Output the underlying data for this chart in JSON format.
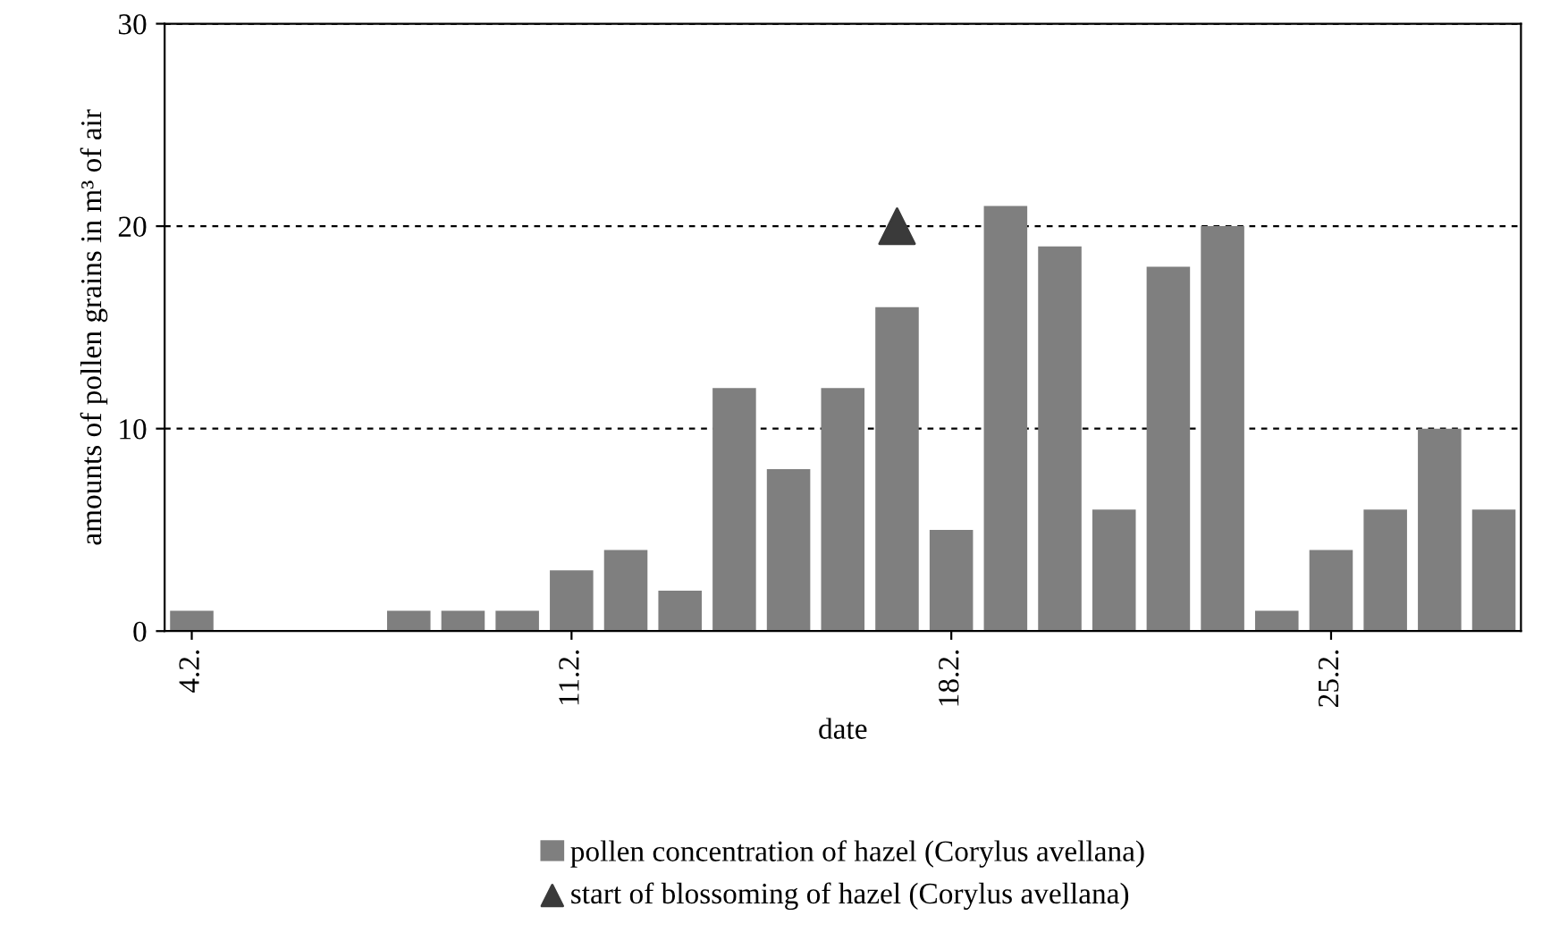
{
  "chart_data": {
    "type": "bar",
    "xlabel": "date",
    "ylabel": "amounts of pollen grains in m³ of air",
    "categories": [
      "4.2.",
      null,
      null,
      null,
      null,
      null,
      null,
      "11.2.",
      null,
      null,
      null,
      null,
      null,
      null,
      "18.2.",
      null,
      null,
      null,
      null,
      null,
      null,
      "25.2.",
      null,
      null,
      null
    ],
    "series": [
      {
        "name": "pollen concentration of hazel (Corylus avellana)",
        "color": "#7f7f7f",
        "values": [
          1,
          0,
          0,
          0,
          1,
          1,
          1,
          3,
          4,
          2,
          12,
          8,
          12,
          16,
          5,
          21,
          19,
          6,
          18,
          20,
          1,
          4,
          6,
          10,
          6
        ]
      },
      {
        "name": "start of blossoming of hazel (Corylus avellana)",
        "type": "scatter",
        "color": "#3a3a3a",
        "marker": "triangle",
        "values": [
          null,
          null,
          null,
          null,
          null,
          null,
          null,
          null,
          null,
          null,
          null,
          null,
          null,
          20,
          null,
          null,
          null,
          null,
          null,
          null,
          null,
          null,
          null,
          null,
          null
        ]
      }
    ],
    "ylim": [
      0,
      30
    ],
    "yticks": [
      0,
      10,
      20,
      30
    ],
    "grid": "y",
    "legend": "bottom"
  }
}
